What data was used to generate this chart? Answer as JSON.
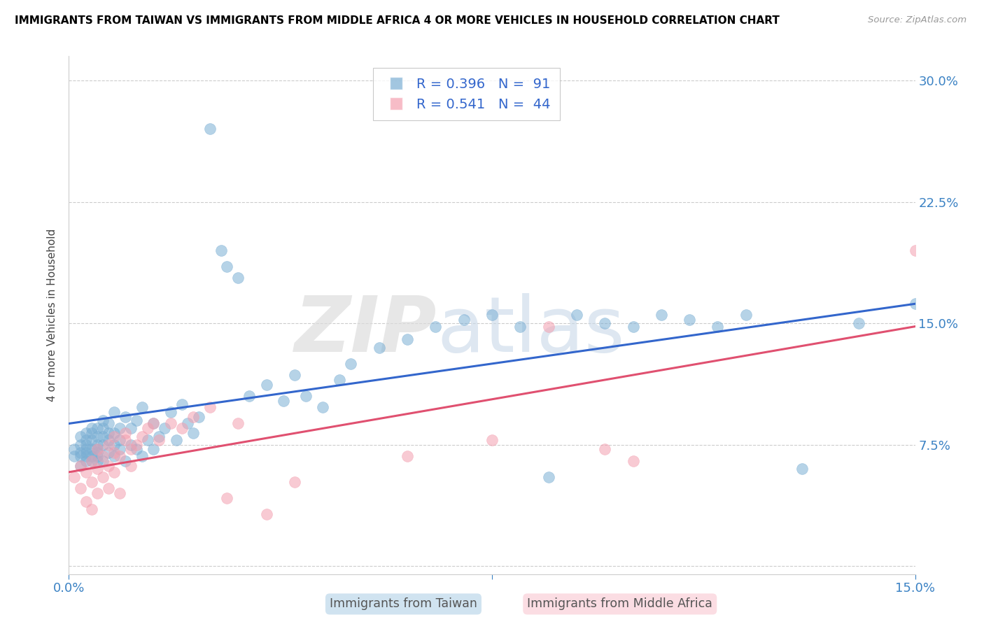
{
  "title": "IMMIGRANTS FROM TAIWAN VS IMMIGRANTS FROM MIDDLE AFRICA 4 OR MORE VEHICLES IN HOUSEHOLD CORRELATION CHART",
  "source": "Source: ZipAtlas.com",
  "ylabel": "4 or more Vehicles in Household",
  "xlim": [
    0.0,
    0.15
  ],
  "ylim": [
    -0.005,
    0.315
  ],
  "taiwan_R": 0.396,
  "taiwan_N": 91,
  "africa_R": 0.541,
  "africa_N": 44,
  "taiwan_color": "#7BAFD4",
  "africa_color": "#F4A0B0",
  "trend_taiwan_color": "#3366CC",
  "trend_africa_color": "#E05070",
  "taiwan_scatter_x": [
    0.001,
    0.001,
    0.002,
    0.002,
    0.002,
    0.002,
    0.002,
    0.003,
    0.003,
    0.003,
    0.003,
    0.003,
    0.003,
    0.003,
    0.004,
    0.004,
    0.004,
    0.004,
    0.004,
    0.004,
    0.005,
    0.005,
    0.005,
    0.005,
    0.005,
    0.005,
    0.005,
    0.006,
    0.006,
    0.006,
    0.006,
    0.006,
    0.007,
    0.007,
    0.007,
    0.007,
    0.008,
    0.008,
    0.008,
    0.008,
    0.009,
    0.009,
    0.009,
    0.01,
    0.01,
    0.011,
    0.011,
    0.012,
    0.012,
    0.013,
    0.013,
    0.014,
    0.015,
    0.015,
    0.016,
    0.017,
    0.018,
    0.019,
    0.02,
    0.021,
    0.022,
    0.023,
    0.025,
    0.027,
    0.028,
    0.03,
    0.032,
    0.035,
    0.038,
    0.04,
    0.042,
    0.045,
    0.048,
    0.05,
    0.055,
    0.06,
    0.065,
    0.07,
    0.075,
    0.08,
    0.085,
    0.09,
    0.095,
    0.1,
    0.105,
    0.11,
    0.115,
    0.12,
    0.13,
    0.14,
    0.15
  ],
  "taiwan_scatter_y": [
    0.068,
    0.072,
    0.062,
    0.07,
    0.075,
    0.08,
    0.068,
    0.072,
    0.078,
    0.065,
    0.07,
    0.075,
    0.082,
    0.068,
    0.065,
    0.072,
    0.078,
    0.082,
    0.068,
    0.085,
    0.065,
    0.07,
    0.075,
    0.08,
    0.085,
    0.068,
    0.072,
    0.065,
    0.075,
    0.08,
    0.085,
    0.09,
    0.07,
    0.078,
    0.082,
    0.088,
    0.068,
    0.075,
    0.082,
    0.095,
    0.072,
    0.078,
    0.085,
    0.065,
    0.092,
    0.075,
    0.085,
    0.072,
    0.09,
    0.068,
    0.098,
    0.078,
    0.072,
    0.088,
    0.08,
    0.085,
    0.095,
    0.078,
    0.1,
    0.088,
    0.082,
    0.092,
    0.27,
    0.195,
    0.185,
    0.178,
    0.105,
    0.112,
    0.102,
    0.118,
    0.105,
    0.098,
    0.115,
    0.125,
    0.135,
    0.14,
    0.148,
    0.152,
    0.155,
    0.148,
    0.055,
    0.155,
    0.15,
    0.148,
    0.155,
    0.152,
    0.148,
    0.155,
    0.06,
    0.15,
    0.162
  ],
  "africa_scatter_x": [
    0.001,
    0.002,
    0.002,
    0.003,
    0.003,
    0.004,
    0.004,
    0.004,
    0.005,
    0.005,
    0.005,
    0.006,
    0.006,
    0.007,
    0.007,
    0.007,
    0.008,
    0.008,
    0.008,
    0.009,
    0.009,
    0.01,
    0.01,
    0.011,
    0.011,
    0.012,
    0.013,
    0.014,
    0.015,
    0.016,
    0.018,
    0.02,
    0.022,
    0.025,
    0.028,
    0.03,
    0.035,
    0.04,
    0.06,
    0.075,
    0.085,
    0.095,
    0.1,
    0.15
  ],
  "africa_scatter_y": [
    0.055,
    0.048,
    0.062,
    0.04,
    0.058,
    0.052,
    0.065,
    0.035,
    0.045,
    0.06,
    0.072,
    0.055,
    0.068,
    0.048,
    0.062,
    0.075,
    0.058,
    0.07,
    0.08,
    0.045,
    0.068,
    0.078,
    0.082,
    0.062,
    0.072,
    0.075,
    0.08,
    0.085,
    0.088,
    0.078,
    0.088,
    0.085,
    0.092,
    0.098,
    0.042,
    0.088,
    0.032,
    0.052,
    0.068,
    0.078,
    0.148,
    0.072,
    0.065,
    0.195
  ],
  "trend_taiwan_x0": 0.0,
  "trend_taiwan_y0": 0.088,
  "trend_taiwan_x1": 0.15,
  "trend_taiwan_y1": 0.162,
  "trend_africa_x0": 0.0,
  "trend_africa_y0": 0.058,
  "trend_africa_x1": 0.15,
  "trend_africa_y1": 0.148
}
